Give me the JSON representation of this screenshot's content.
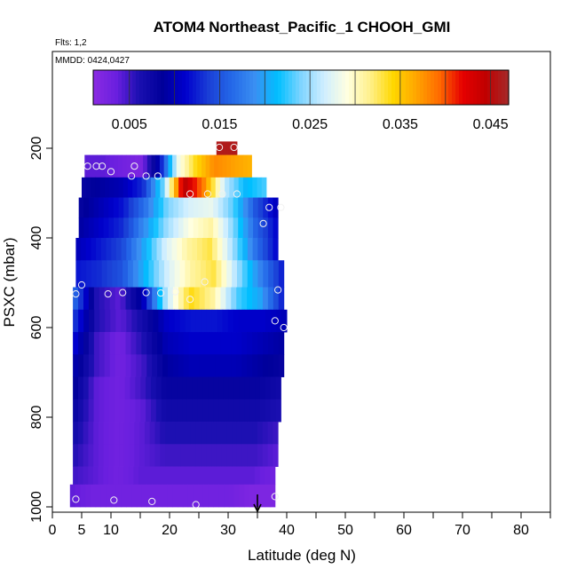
{
  "header": {
    "title": "ATOM4 Northeast_Pacific_1 CHOOH_GMI",
    "flights": "Flts: 1,2",
    "mmdd": "MMDD: 0424,0427"
  },
  "colorbar": {
    "range": [
      0.001,
      0.047
    ],
    "tick_values": [
      0.005,
      0.015,
      0.025,
      0.035,
      0.045
    ],
    "tick_labels": [
      "0.005",
      "0.015",
      "0.025",
      "0.035",
      "0.045"
    ],
    "colors": [
      "#8a2be2",
      "#6a1fdf",
      "#1a0fb0",
      "#00009a",
      "#0000cd",
      "#1a3fd6",
      "#2468e8",
      "#3a8ff2",
      "#00bfff",
      "#7fd4ff",
      "#cfeeff",
      "#ffffe0",
      "#fff08a",
      "#ffd700",
      "#ffa500",
      "#ff6a00",
      "#e60000",
      "#c00000",
      "#a52a2a"
    ]
  },
  "chart_data": {
    "type": "heatmap",
    "title": "ATOM4 Northeast_Pacific_1 CHOOH_GMI",
    "xlabel": "Latitude (deg N)",
    "ylabel": "PSXC (mbar)",
    "xlim": [
      0,
      85
    ],
    "ylim": [
      1000,
      0
    ],
    "x_ticks": [
      0,
      5,
      10,
      20,
      30,
      40,
      50,
      60,
      70,
      80
    ],
    "x_minor_ticks": [
      15,
      25,
      35,
      45,
      55,
      65,
      75,
      85
    ],
    "y_ticks": [
      200,
      400,
      600,
      800,
      1000
    ],
    "x_marker": 35,
    "rows": [
      {
        "p_top": 185,
        "p_bot": 215,
        "x0": 28,
        "x1": 31.5,
        "v": [
          0.046,
          0.046
        ]
      },
      {
        "p_top": 215,
        "p_bot": 265,
        "x0": 5.5,
        "x1": 34,
        "v": [
          0.004,
          0.004,
          0.003,
          0.002,
          0.01,
          0.028,
          0.034,
          0.038,
          0.037,
          0.036
        ]
      },
      {
        "p_top": 265,
        "p_bot": 310,
        "x0": 5,
        "x1": 36.5,
        "v": [
          0.008,
          0.009,
          0.01,
          0.013,
          0.024,
          0.045,
          0.038,
          0.026,
          0.021,
          0.023
        ]
      },
      {
        "p_top": 310,
        "p_bot": 355,
        "x0": 4.5,
        "x1": 38.5,
        "v": [
          0.008,
          0.01,
          0.012,
          0.017,
          0.024,
          0.027,
          0.028,
          0.023,
          0.015,
          0.01
        ]
      },
      {
        "p_top": 355,
        "p_bot": 400,
        "x0": 4.5,
        "x1": 38.5,
        "v": [
          0.009,
          0.011,
          0.013,
          0.019,
          0.025,
          0.029,
          0.031,
          0.024,
          0.016,
          0.011
        ]
      },
      {
        "p_top": 400,
        "p_bot": 450,
        "x0": 4,
        "x1": 38.5,
        "v": [
          0.01,
          0.012,
          0.014,
          0.02,
          0.027,
          0.031,
          0.033,
          0.025,
          0.017,
          0.011
        ]
      },
      {
        "p_top": 450,
        "p_bot": 510,
        "x0": 4,
        "x1": 39.5,
        "v": [
          0.012,
          0.013,
          0.015,
          0.021,
          0.027,
          0.031,
          0.033,
          0.025,
          0.018,
          0.012
        ]
      },
      {
        "p_top": 510,
        "p_bot": 560,
        "x0": 3.5,
        "x1": 39.5,
        "v": [
          0.017,
          0.006,
          0.004,
          0.01,
          0.026,
          0.034,
          0.031,
          0.023,
          0.02,
          0.012
        ]
      },
      {
        "p_top": 560,
        "p_bot": 610,
        "x0": 3.5,
        "x1": 40,
        "v": [
          0.014,
          0.006,
          0.004,
          0.007,
          0.011,
          0.012,
          0.012,
          0.011,
          0.011,
          0.01
        ]
      },
      {
        "p_top": 610,
        "p_bot": 660,
        "x0": 3.5,
        "x1": 39.5,
        "v": [
          0.012,
          0.005,
          0.003,
          0.006,
          0.01,
          0.011,
          0.011,
          0.011,
          0.01,
          0.009
        ]
      },
      {
        "p_top": 660,
        "p_bot": 710,
        "x0": 3.5,
        "x1": 39.5,
        "v": [
          0.01,
          0.005,
          0.003,
          0.005,
          0.009,
          0.01,
          0.01,
          0.01,
          0.009,
          0.008
        ]
      },
      {
        "p_top": 710,
        "p_bot": 760,
        "x0": 3.5,
        "x1": 39,
        "v": [
          0.009,
          0.004,
          0.003,
          0.005,
          0.008,
          0.008,
          0.008,
          0.008,
          0.008,
          0.007
        ]
      },
      {
        "p_top": 760,
        "p_bot": 810,
        "x0": 3.5,
        "x1": 39,
        "v": [
          0.008,
          0.004,
          0.003,
          0.004,
          0.007,
          0.007,
          0.007,
          0.007,
          0.007,
          0.006
        ]
      },
      {
        "p_top": 810,
        "p_bot": 860,
        "x0": 3.5,
        "x1": 38.5,
        "v": [
          0.007,
          0.004,
          0.003,
          0.004,
          0.006,
          0.006,
          0.006,
          0.006,
          0.006,
          0.005
        ]
      },
      {
        "p_top": 860,
        "p_bot": 910,
        "x0": 3.5,
        "x1": 38.5,
        "v": [
          0.006,
          0.004,
          0.003,
          0.004,
          0.005,
          0.005,
          0.005,
          0.005,
          0.005,
          0.004
        ]
      },
      {
        "p_top": 910,
        "p_bot": 950,
        "x0": 3.5,
        "x1": 38,
        "v": [
          0.005,
          0.004,
          0.003,
          0.004,
          0.004,
          0.004,
          0.004,
          0.004,
          0.004,
          0.003
        ]
      },
      {
        "p_top": 950,
        "p_bot": 1000,
        "x0": 3,
        "x1": 38,
        "v": [
          0.004,
          0.003,
          0.003,
          0.003,
          0.003,
          0.003,
          0.003,
          0.003,
          0.002,
          0.002
        ]
      }
    ],
    "points": [
      {
        "x": 28.5,
        "y": 198
      },
      {
        "x": 31,
        "y": 198
      },
      {
        "x": 6,
        "y": 240
      },
      {
        "x": 7.5,
        "y": 240
      },
      {
        "x": 8.5,
        "y": 240
      },
      {
        "x": 14,
        "y": 240
      },
      {
        "x": 10,
        "y": 252
      },
      {
        "x": 13.5,
        "y": 262
      },
      {
        "x": 16,
        "y": 262
      },
      {
        "x": 18,
        "y": 262
      },
      {
        "x": 23.5,
        "y": 302
      },
      {
        "x": 26.5,
        "y": 302
      },
      {
        "x": 29,
        "y": 302
      },
      {
        "x": 31.5,
        "y": 302
      },
      {
        "x": 37,
        "y": 332
      },
      {
        "x": 39,
        "y": 332
      },
      {
        "x": 36,
        "y": 368
      },
      {
        "x": 5,
        "y": 505
      },
      {
        "x": 21,
        "y": 520
      },
      {
        "x": 26,
        "y": 498
      },
      {
        "x": 38.5,
        "y": 516
      },
      {
        "x": 4,
        "y": 525
      },
      {
        "x": 9.5,
        "y": 525
      },
      {
        "x": 12,
        "y": 522
      },
      {
        "x": 16,
        "y": 522
      },
      {
        "x": 18.5,
        "y": 523
      },
      {
        "x": 23.5,
        "y": 537
      },
      {
        "x": 38,
        "y": 585
      },
      {
        "x": 39.5,
        "y": 600
      },
      {
        "x": 4,
        "y": 983
      },
      {
        "x": 10.5,
        "y": 985
      },
      {
        "x": 17,
        "y": 988
      },
      {
        "x": 24.5,
        "y": 995
      },
      {
        "x": 38,
        "y": 977
      }
    ]
  }
}
